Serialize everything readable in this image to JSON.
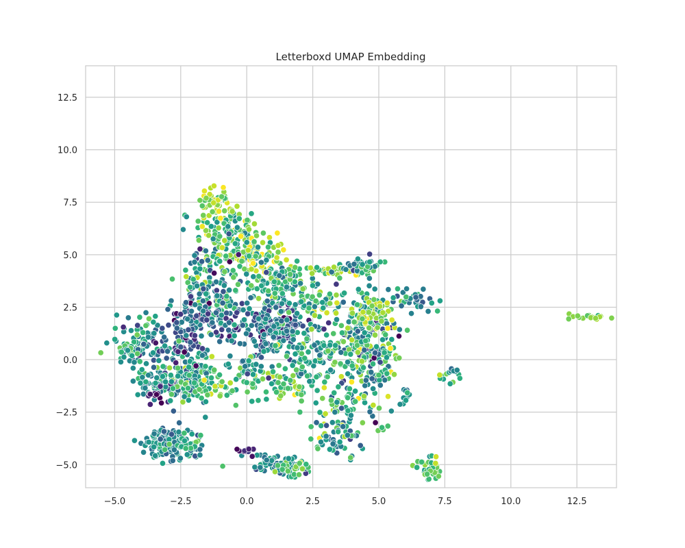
{
  "chart_data": {
    "type": "scatter",
    "title": "Letterboxd UMAP Embedding",
    "xlabel": "",
    "ylabel": "",
    "xlim": [
      -6.1,
      14.0
    ],
    "ylim": [
      -6.1,
      14.0
    ],
    "xticks": [
      -5.0,
      -2.5,
      0.0,
      2.5,
      5.0,
      7.5,
      10.0,
      12.5
    ],
    "yticks": [
      -5.0,
      -2.5,
      0.0,
      2.5,
      5.0,
      7.5,
      10.0,
      12.5
    ],
    "xtick_labels": [
      "−5.0",
      "−2.5",
      "0.0",
      "2.5",
      "5.0",
      "7.5",
      "10.0",
      "12.5"
    ],
    "ytick_labels": [
      "−5.0",
      "−2.5",
      "0.0",
      "2.5",
      "5.0",
      "7.5",
      "10.0",
      "12.5"
    ],
    "grid": true,
    "legend": "none",
    "colormap": "viridis",
    "marker_edge_color": "#ffffff",
    "style": {
      "grid_color": "#cccccc",
      "spine_color": "#cccccc",
      "text_color": "#262626"
    },
    "clusters": [
      {
        "cx": -1.2,
        "cy": 7.6,
        "sx": 0.3,
        "sy": 0.4,
        "n": 40,
        "c": 0.85,
        "cs": 0.1
      },
      {
        "cx": -0.8,
        "cy": 6.2,
        "sx": 0.6,
        "sy": 0.6,
        "n": 110,
        "c": 0.72,
        "cs": 0.15
      },
      {
        "cx": 0.2,
        "cy": 5.1,
        "sx": 0.7,
        "sy": 0.4,
        "n": 110,
        "c": 0.75,
        "cs": 0.15
      },
      {
        "cx": -1.5,
        "cy": 3.2,
        "sx": 0.6,
        "sy": 1.0,
        "n": 170,
        "c": 0.5,
        "cs": 0.2
      },
      {
        "cx": -1.7,
        "cy": 2.0,
        "sx": 0.5,
        "sy": 0.5,
        "n": 60,
        "c": 0.3,
        "cs": 0.15
      },
      {
        "cx": 1.2,
        "cy": 3.6,
        "sx": 0.8,
        "sy": 0.6,
        "n": 130,
        "c": 0.62,
        "cs": 0.15
      },
      {
        "cx": 3.3,
        "cy": 4.3,
        "sx": 0.9,
        "sy": 0.15,
        "n": 45,
        "c": 0.75,
        "cs": 0.12
      },
      {
        "cx": 4.4,
        "cy": 4.4,
        "sx": 0.4,
        "sy": 0.2,
        "n": 30,
        "c": 0.55,
        "cs": 0.15
      },
      {
        "cx": 2.8,
        "cy": 2.7,
        "sx": 0.5,
        "sy": 0.4,
        "n": 40,
        "c": 0.7,
        "cs": 0.15
      },
      {
        "cx": 1.0,
        "cy": 1.6,
        "sx": 0.8,
        "sy": 0.6,
        "n": 220,
        "c": 0.38,
        "cs": 0.15
      },
      {
        "cx": 2.5,
        "cy": 0.3,
        "sx": 1.0,
        "sy": 0.7,
        "n": 130,
        "c": 0.58,
        "cs": 0.15
      },
      {
        "cx": 1.6,
        "cy": -1.3,
        "sx": 0.8,
        "sy": 0.4,
        "n": 60,
        "c": 0.72,
        "cs": 0.12
      },
      {
        "cx": 4.6,
        "cy": 1.0,
        "sx": 0.6,
        "sy": 1.4,
        "n": 260,
        "c": 0.55,
        "cs": 0.2
      },
      {
        "cx": 4.9,
        "cy": 2.2,
        "sx": 0.4,
        "sy": 0.4,
        "n": 40,
        "c": 0.85,
        "cs": 0.08
      },
      {
        "cx": 6.3,
        "cy": 2.9,
        "sx": 0.6,
        "sy": 0.3,
        "n": 35,
        "c": 0.5,
        "cs": 0.15
      },
      {
        "cx": 3.7,
        "cy": -2.7,
        "sx": 0.5,
        "sy": 0.9,
        "n": 70,
        "c": 0.6,
        "cs": 0.2
      },
      {
        "cx": 3.2,
        "cy": -3.8,
        "sx": 0.5,
        "sy": 0.4,
        "n": 30,
        "c": 0.45,
        "cs": 0.15
      },
      {
        "cx": -3.0,
        "cy": -1.2,
        "sx": 0.6,
        "sy": 0.5,
        "n": 100,
        "c": 0.48,
        "cs": 0.15
      },
      {
        "cx": -2.0,
        "cy": -0.8,
        "sx": 0.6,
        "sy": 0.6,
        "n": 110,
        "c": 0.58,
        "cs": 0.15
      },
      {
        "cx": -1.2,
        "cy": -1.3,
        "sx": 0.5,
        "sy": 0.4,
        "n": 40,
        "c": 0.72,
        "cs": 0.12
      },
      {
        "cx": -3.9,
        "cy": 0.7,
        "sx": 0.5,
        "sy": 0.6,
        "n": 90,
        "c": 0.5,
        "cs": 0.15
      },
      {
        "cx": -4.5,
        "cy": 0.4,
        "sx": 0.3,
        "sy": 0.15,
        "n": 20,
        "c": 0.6,
        "cs": 0.15
      },
      {
        "cx": -2.6,
        "cy": 0.7,
        "sx": 0.5,
        "sy": 0.5,
        "n": 60,
        "c": 0.3,
        "cs": 0.15
      },
      {
        "cx": -3.5,
        "cy": -1.6,
        "sx": 0.15,
        "sy": 0.2,
        "n": 12,
        "c": 0.05,
        "cs": 0.05
      },
      {
        "cx": -3.0,
        "cy": -3.9,
        "sx": 0.5,
        "sy": 0.35,
        "n": 130,
        "c": 0.45,
        "cs": 0.1
      },
      {
        "cx": -2.1,
        "cy": -4.1,
        "sx": 0.3,
        "sy": 0.2,
        "n": 30,
        "c": 0.55,
        "cs": 0.12
      },
      {
        "cx": 1.2,
        "cy": -5.0,
        "sx": 0.6,
        "sy": 0.25,
        "n": 60,
        "c": 0.45,
        "cs": 0.1
      },
      {
        "cx": 1.8,
        "cy": -5.1,
        "sx": 0.3,
        "sy": 0.15,
        "n": 25,
        "c": 0.72,
        "cs": 0.1
      },
      {
        "cx": 0.0,
        "cy": -4.4,
        "sx": 0.15,
        "sy": 0.1,
        "n": 10,
        "c": 0.1,
        "cs": 0.05
      },
      {
        "cx": 6.9,
        "cy": -5.2,
        "sx": 0.25,
        "sy": 0.3,
        "n": 35,
        "c": 0.75,
        "cs": 0.1
      },
      {
        "cx": 13.1,
        "cy": 2.05,
        "sx": 0.5,
        "sy": 0.08,
        "n": 20,
        "c": 0.82,
        "cs": 0.05
      },
      {
        "cx": 7.6,
        "cy": -0.9,
        "sx": 0.25,
        "sy": 0.2,
        "n": 10,
        "c": 0.65,
        "cs": 0.1
      },
      {
        "cx": 7.9,
        "cy": -0.5,
        "sx": 0.08,
        "sy": 0.05,
        "n": 5,
        "c": 0.45,
        "cs": 0.05
      },
      {
        "cx": 6.0,
        "cy": -1.7,
        "sx": 0.1,
        "sy": 0.3,
        "n": 10,
        "c": 0.55,
        "cs": 0.1
      },
      {
        "cx": 5.2,
        "cy": -3.2,
        "sx": 0.1,
        "sy": 0.1,
        "n": 4,
        "c": 0.7,
        "cs": 0.1
      },
      {
        "cx": 0.1,
        "cy": -0.5,
        "sx": 0.3,
        "sy": 0.3,
        "n": 25,
        "c": 0.5,
        "cs": 0.2
      }
    ]
  }
}
